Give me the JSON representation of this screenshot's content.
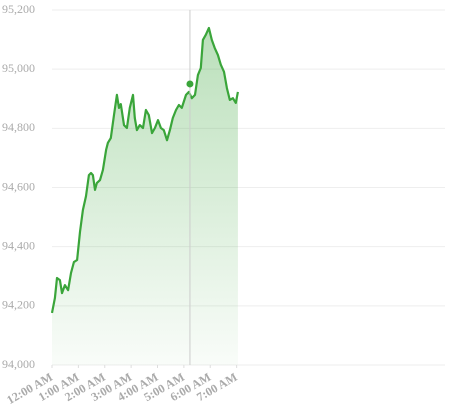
{
  "chart_data": {
    "type": "area",
    "x": [
      0,
      0.11,
      0.19,
      0.3,
      0.38,
      0.49,
      0.61,
      0.72,
      0.83,
      0.95,
      1.06,
      1.17,
      1.29,
      1.4,
      1.48,
      1.55,
      1.63,
      1.7,
      1.82,
      1.93,
      2.05,
      2.12,
      2.23,
      2.35,
      2.46,
      2.54,
      2.61,
      2.73,
      2.84,
      2.95,
      3.07,
      3.14,
      3.22,
      3.33,
      3.45,
      3.56,
      3.67,
      3.79,
      3.9,
      4.02,
      4.13,
      4.24,
      4.36,
      4.47,
      4.58,
      4.7,
      4.81,
      4.92,
      5.08,
      5.19,
      5.3,
      5.42,
      5.53,
      5.64,
      5.72,
      5.83,
      5.95,
      6.06,
      6.17,
      6.29,
      6.4,
      6.52,
      6.63,
      6.74,
      6.86,
      6.97,
      7.05
    ],
    "values": [
      94176,
      94226,
      94294,
      94287,
      94243,
      94270,
      94253,
      94311,
      94348,
      94355,
      94450,
      94524,
      94571,
      94642,
      94649,
      94642,
      94592,
      94615,
      94625,
      94659,
      94727,
      94751,
      94767,
      94845,
      94913,
      94869,
      94882,
      94811,
      94801,
      94869,
      94913,
      94835,
      94794,
      94811,
      94801,
      94862,
      94845,
      94784,
      94801,
      94828,
      94801,
      94794,
      94760,
      94794,
      94835,
      94862,
      94879,
      94869,
      94913,
      94923,
      94902,
      94913,
      94980,
      95004,
      95099,
      95116,
      95139,
      95099,
      95072,
      95048,
      95015,
      94991,
      94936,
      94896,
      94902,
      94886,
      94923
    ],
    "color": "#3aa53a",
    "hover": {
      "x": 5.23,
      "y": 94950
    },
    "xlim": [
      0,
      14.9
    ],
    "xticks": [
      {
        "value": 0,
        "label": "12:00 AM"
      },
      {
        "value": 1,
        "label": "1:00 AM"
      },
      {
        "value": 2,
        "label": "2:00 AM"
      },
      {
        "value": 3,
        "label": "3:00 AM"
      },
      {
        "value": 4,
        "label": "4:00 AM"
      },
      {
        "value": 5,
        "label": "5:00 AM"
      },
      {
        "value": 6,
        "label": "6:00 AM"
      },
      {
        "value": 7,
        "label": "7:00 AM"
      }
    ],
    "ylim": [
      94000,
      95200
    ],
    "yticks": [
      {
        "value": 94000,
        "label": "94,000"
      },
      {
        "value": 94200,
        "label": "94,200"
      },
      {
        "value": 94400,
        "label": "94,400"
      },
      {
        "value": 94600,
        "label": "94,600"
      },
      {
        "value": 94800,
        "label": "94,800"
      },
      {
        "value": 95000,
        "label": "95,000"
      },
      {
        "value": 95200,
        "label": "95,200"
      }
    ],
    "grid": true
  }
}
